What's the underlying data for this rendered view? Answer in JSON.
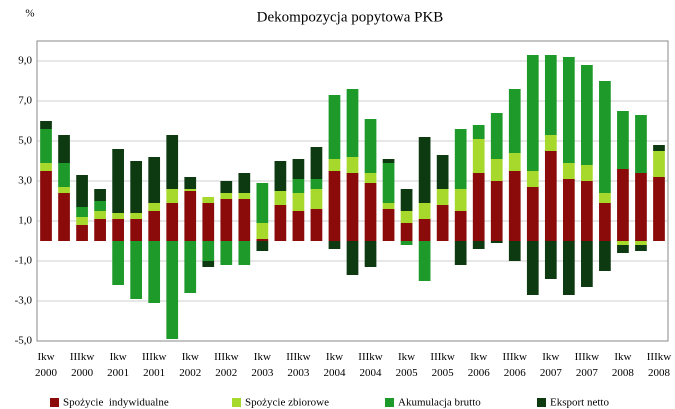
{
  "chart_data": {
    "type": "bar",
    "stacked": true,
    "title": "Dekompozycja popytowa PKB",
    "y_axis_label": "%",
    "categories": [
      "Ikw 2000",
      null,
      "IIIkw 2000",
      null,
      "Ikw 2001",
      null,
      "IIIkw 2001",
      null,
      "Ikw 2002",
      null,
      "IIIkw 2002",
      null,
      "Ikw 2003",
      null,
      "IIIkw 2003",
      null,
      "Ikw 2004",
      null,
      "IIIkw 2004",
      null,
      "Ikw 2005",
      null,
      "IIIkw 2005",
      null,
      "Ikw 2006",
      null,
      "IIIkw 2006",
      null,
      "Ikw 2007",
      null,
      "IIIkw 2007",
      null,
      "Ikw 2008",
      null,
      "IIIkw 2008"
    ],
    "series": [
      {
        "name": "Spożycie  indywidualne",
        "color": "#8b0a0a",
        "values": [
          3.5,
          2.4,
          0.8,
          1.1,
          1.1,
          1.1,
          1.5,
          1.9,
          2.5,
          1.9,
          2.1,
          2.1,
          0.1,
          1.8,
          1.5,
          1.6,
          3.5,
          3.4,
          2.9,
          1.6,
          0.9,
          1.1,
          1.8,
          1.5,
          3.4,
          3.0,
          3.5,
          2.7,
          4.5,
          3.1,
          3.0,
          1.9,
          3.6,
          3.4,
          3.2
        ]
      },
      {
        "name": "Spożycie zbiorowe",
        "color": "#a6d92b",
        "values": [
          0.4,
          0.3,
          0.4,
          0.4,
          0.3,
          0.3,
          0.4,
          0.7,
          0.1,
          0.3,
          0.3,
          0.3,
          0.8,
          0.7,
          0.9,
          1.0,
          0.6,
          0.8,
          0.5,
          0.3,
          0.6,
          0.8,
          0.8,
          1.1,
          1.7,
          1.1,
          0.9,
          0.8,
          0.8,
          0.8,
          0.8,
          0.5,
          -0.2,
          -0.2,
          1.3
        ]
      },
      {
        "name": "Akumulacja brutto",
        "color": "#1e9a2a",
        "values": [
          1.7,
          1.2,
          0.5,
          0.5,
          -2.2,
          -2.9,
          -3.1,
          -4.9,
          -2.6,
          -1.0,
          -1.2,
          -1.2,
          2.0,
          0,
          0.7,
          0.5,
          3.2,
          3.4,
          2.7,
          2.0,
          -0.2,
          -2.0,
          0,
          3.0,
          0.7,
          2.3,
          3.2,
          5.8,
          4.0,
          5.3,
          5.0,
          5.6,
          2.9,
          2.9,
          0
        ]
      },
      {
        "name": "Eksport netto",
        "color": "#0e3a12",
        "values": [
          0.4,
          1.4,
          1.6,
          0.6,
          3.2,
          2.6,
          2.3,
          2.7,
          0.6,
          -0.3,
          0.6,
          1.0,
          -0.5,
          1.5,
          1.0,
          1.6,
          -0.4,
          -1.7,
          -1.3,
          0.2,
          1.1,
          3.3,
          1.7,
          -1.2,
          -0.4,
          -0.1,
          -1.0,
          -2.7,
          -1.9,
          -2.7,
          -2.3,
          -1.5,
          -0.4,
          -0.3,
          0.3
        ]
      }
    ],
    "ylim": [
      -5,
      10
    ],
    "yticks": [
      {
        "value": -5,
        "label": "-5,0"
      },
      {
        "value": -3,
        "label": "-3,0"
      },
      {
        "value": -1,
        "label": "-1,0"
      },
      {
        "value": 1,
        "label": "1,0"
      },
      {
        "value": 3,
        "label": "3,0"
      },
      {
        "value": 5,
        "label": "5,0"
      },
      {
        "value": 7,
        "label": "7,0"
      },
      {
        "value": 9,
        "label": "9,0"
      }
    ],
    "grid": true,
    "legend": "bottom"
  }
}
